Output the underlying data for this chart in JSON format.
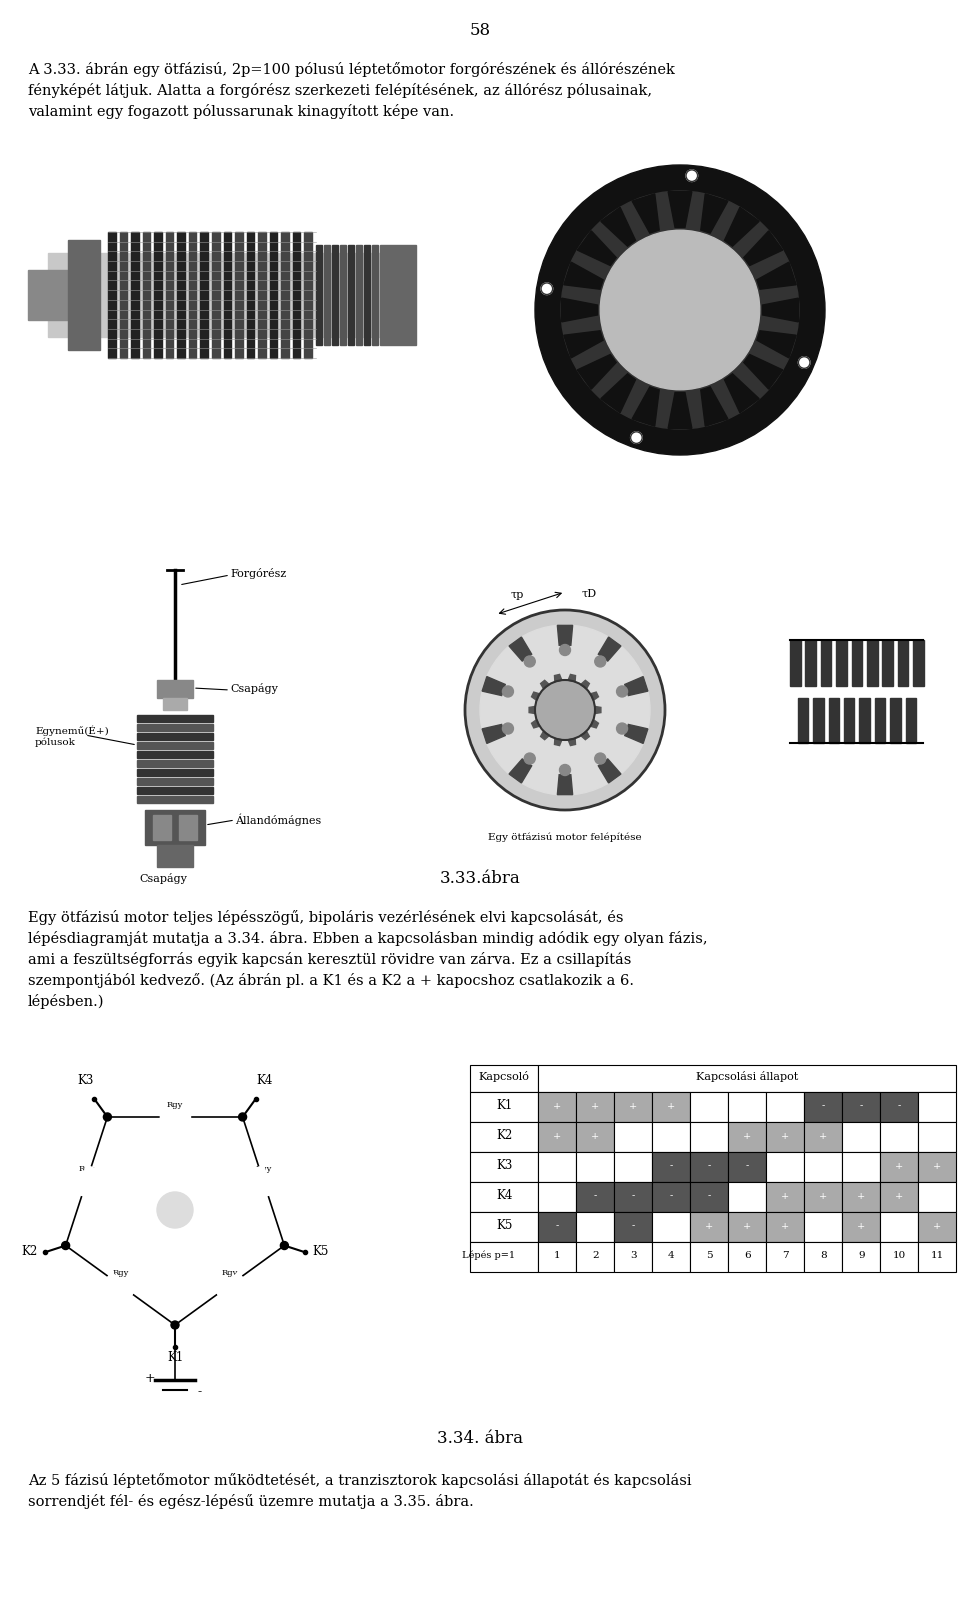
{
  "page_number": "58",
  "bg_color": "#ffffff",
  "paragraph1_lines": [
    "A 3.33. ábrán egy ötfázisú, 2p=100 pólusú léptetőmotor forgórészének és állórészének",
    "fényképét látjuk. Alatta a forgórész szerkezeti felépítésének, az állórész pólusainak,",
    "valamint egy fogazott pólussarunak kinagyított képe van."
  ],
  "caption_333": "3.33.ábra",
  "paragraph2_lines": [
    "Egy ötfázisú motor teljes lépésszögű, bipoláris vezérlésének elvi kapcsolását, és",
    "lépésdiagramját mutatja a 3.34. ábra. Ebben a kapcsolásban mindig adódik egy olyan fázis,",
    "ami a feszültségforrás egyik kapcsán keresztül rövidre van zárva. Ez a csillapítás",
    "szempontjából kedvező. (Az ábrán pl. a K1 és a K2 a + kapocshoz csatlakozik a 6.",
    "lépésben.)"
  ],
  "caption_334": "3.34. ábra",
  "paragraph3_lines": [
    "Az 5 fázisú léptetőmotor működtetését, a tranzisztorok kapcsolási állapotát és kapcsolási",
    "sorrendjét fél- és egész-lépésű üzemre mutatja a 3.35. ábra."
  ],
  "label_forgoresz": "Forgórész",
  "label_csapagy_top": "Csapágy",
  "label_csapagy_bot": "Csapágy",
  "label_egynemű": "Egynemű(É+)\npólusok",
  "label_allandomagnes": "Állandómágnes",
  "label_egy_otfazisu": "Egy ötfázisú motor felépítése",
  "label_kapcsolo": "Kapcsoló",
  "label_kapcsolasi_allapot": "Kapcsolási állapot",
  "switch_labels": [
    "K1",
    "K2",
    "K3",
    "K4",
    "K5"
  ],
  "step_label": "Lépés p=1",
  "steps": [
    1,
    2,
    3,
    4,
    5,
    6,
    7,
    8,
    9,
    10,
    11
  ],
  "pattern": [
    [
      1,
      1,
      0,
      0,
      -1
    ],
    [
      1,
      1,
      0,
      -1,
      0
    ],
    [
      1,
      0,
      0,
      -1,
      -1
    ],
    [
      1,
      0,
      -1,
      -1,
      0
    ],
    [
      0,
      0,
      -1,
      -1,
      1
    ],
    [
      0,
      1,
      -1,
      0,
      1
    ],
    [
      0,
      1,
      0,
      1,
      1
    ],
    [
      -1,
      1,
      0,
      1,
      0
    ],
    [
      -1,
      0,
      0,
      1,
      1
    ],
    [
      -1,
      0,
      1,
      1,
      0
    ],
    [
      0,
      0,
      1,
      0,
      1
    ]
  ],
  "plus_color": "#aaaaaa",
  "minus_color": "#555555",
  "tau_p_label": "τp",
  "tau_D_label": "τD"
}
